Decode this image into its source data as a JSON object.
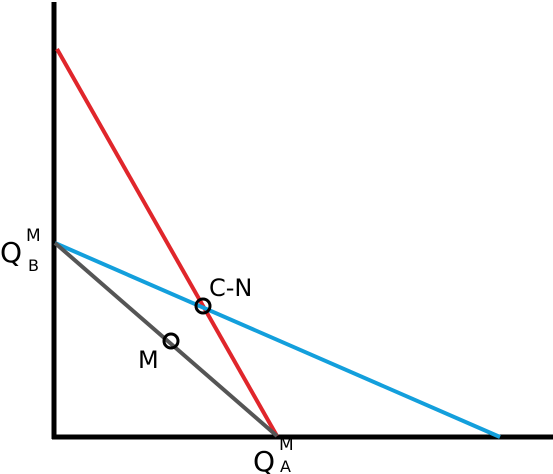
{
  "labels": {
    "y_axis": {
      "main": "Q",
      "sup": "M",
      "sub": "B"
    },
    "x_axis": {
      "main": "Q",
      "sup": "M",
      "sub": "A"
    },
    "intersection": "C-N",
    "point_m": "M"
  },
  "colors": {
    "red_line": "#e0262b",
    "blue_line": "#139fdc",
    "gray_line": "#555555",
    "axis": "#000000"
  }
}
